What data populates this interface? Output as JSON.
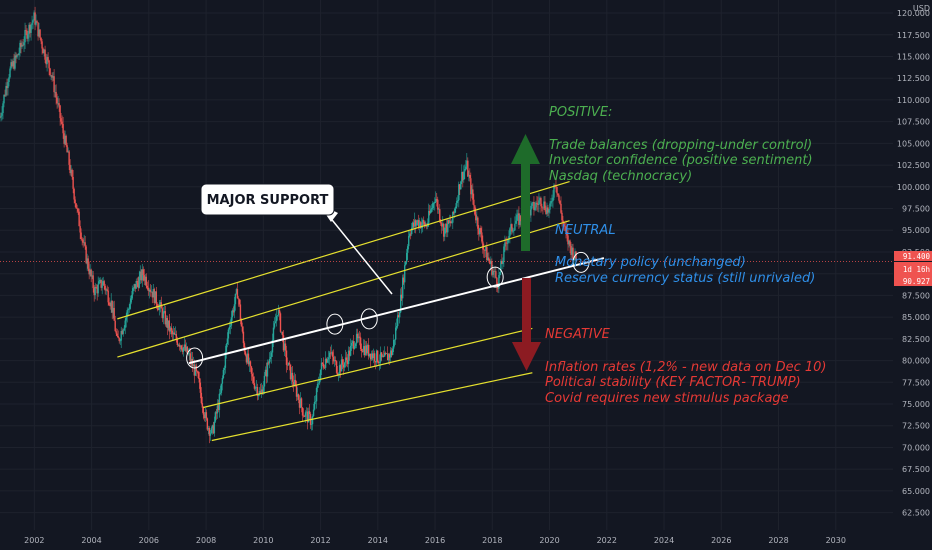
{
  "chart_data": {
    "type": "candlestick",
    "instrument_currency": "USD",
    "x_ticks": [
      "2002",
      "2004",
      "2006",
      "2008",
      "2010",
      "2012",
      "2014",
      "2016",
      "2018",
      "2020",
      "2022",
      "2024",
      "2026",
      "2028",
      "2030"
    ],
    "x_range": [
      2000.8,
      2032.0
    ],
    "y_ticks": [
      "120.000",
      "117.500",
      "115.000",
      "112.500",
      "110.000",
      "107.500",
      "105.000",
      "102.500",
      "100.000",
      "97.500",
      "95.000",
      "92.500",
      "90.000",
      "87.500",
      "85.000",
      "82.500",
      "80.000",
      "77.500",
      "75.000",
      "72.500",
      "70.000",
      "67.500",
      "65.000",
      "62.500"
    ],
    "y_range": [
      60.5,
      121.5
    ],
    "price_series": [
      [
        2000.8,
        108
      ],
      [
        2001.1,
        113
      ],
      [
        2001.4,
        115
      ],
      [
        2001.7,
        117.5
      ],
      [
        2002.0,
        119.5
      ],
      [
        2002.3,
        116
      ],
      [
        2002.6,
        113
      ],
      [
        2002.9,
        108
      ],
      [
        2003.2,
        103
      ],
      [
        2003.5,
        97
      ],
      [
        2003.8,
        92
      ],
      [
        2004.1,
        88
      ],
      [
        2004.4,
        89
      ],
      [
        2004.7,
        86.5
      ],
      [
        2004.9,
        82
      ],
      [
        2005.2,
        85
      ],
      [
        2005.5,
        88.5
      ],
      [
        2005.8,
        90
      ],
      [
        2006.1,
        88
      ],
      [
        2006.4,
        86
      ],
      [
        2006.8,
        83
      ],
      [
        2007.1,
        82
      ],
      [
        2007.4,
        80.5
      ],
      [
        2007.7,
        78
      ],
      [
        2008.0,
        73
      ],
      [
        2008.2,
        71.5
      ],
      [
        2008.5,
        76
      ],
      [
        2008.8,
        84
      ],
      [
        2009.1,
        88
      ],
      [
        2009.3,
        82
      ],
      [
        2009.6,
        78
      ],
      [
        2009.9,
        76
      ],
      [
        2010.2,
        80
      ],
      [
        2010.5,
        86
      ],
      [
        2010.8,
        80
      ],
      [
        2011.1,
        77
      ],
      [
        2011.4,
        74
      ],
      [
        2011.7,
        73
      ],
      [
        2012.0,
        79
      ],
      [
        2012.3,
        81
      ],
      [
        2012.6,
        79
      ],
      [
        2012.9,
        80
      ],
      [
        2013.2,
        82.5
      ],
      [
        2013.5,
        81.5
      ],
      [
        2013.9,
        80.5
      ],
      [
        2014.2,
        80
      ],
      [
        2014.5,
        81
      ],
      [
        2014.8,
        87
      ],
      [
        2015.1,
        95
      ],
      [
        2015.4,
        96
      ],
      [
        2015.7,
        95.5
      ],
      [
        2016.0,
        99
      ],
      [
        2016.3,
        95
      ],
      [
        2016.6,
        96
      ],
      [
        2016.9,
        101
      ],
      [
        2017.1,
        102.5
      ],
      [
        2017.4,
        97
      ],
      [
        2017.7,
        93
      ],
      [
        2018.0,
        90.5
      ],
      [
        2018.2,
        89
      ],
      [
        2018.5,
        94
      ],
      [
        2018.8,
        96
      ],
      [
        2019.1,
        96.5
      ],
      [
        2019.4,
        97.5
      ],
      [
        2019.7,
        98.5
      ],
      [
        2020.0,
        97
      ],
      [
        2020.2,
        101
      ],
      [
        2020.4,
        97
      ],
      [
        2020.6,
        94
      ],
      [
        2020.8,
        92.5
      ],
      [
        2020.95,
        91.4
      ]
    ],
    "price_tags": [
      "91.400",
      "1d 16h",
      "90.927"
    ],
    "trend_lines": [
      {
        "color": "#e5e02e",
        "from": [
          2004.9,
          84.8
        ],
        "to": [
          2020.7,
          100.6
        ]
      },
      {
        "color": "#e5e02e",
        "from": [
          2004.9,
          80.4
        ],
        "to": [
          2020.7,
          96.1
        ]
      },
      {
        "color": "#e5e02e",
        "from": [
          2007.9,
          74.6
        ],
        "to": [
          2019.4,
          83.7
        ]
      },
      {
        "color": "#e5e02e",
        "from": [
          2008.2,
          70.8
        ],
        "to": [
          2019.4,
          78.6
        ]
      },
      {
        "color": "#ffffff",
        "from": [
          2007.4,
          79.7
        ],
        "to": [
          2021.9,
          91.8
        ]
      }
    ],
    "touch_circles": [
      [
        2007.6,
        80.3
      ],
      [
        2012.5,
        84.2
      ],
      [
        2013.7,
        84.8
      ],
      [
        2018.1,
        89.6
      ],
      [
        2021.1,
        91.3
      ]
    ],
    "callout": {
      "text": "MAJOR SUPPORT"
    },
    "positive": {
      "title": "POSITIVE:",
      "color": "#4caf50",
      "items": [
        "Trade balances (dropping-under control)",
        "Investor confidence (positive sentiment)",
        "Nasdaq (technocracy)"
      ]
    },
    "neutral": {
      "title": "NEUTRAL",
      "color": "#2f8fe8",
      "items": [
        "Monetary policy (unchanged)",
        "Reserve currency status (still unrivaled)"
      ]
    },
    "negative": {
      "title": "NEGATIVE",
      "color": "#e53935",
      "items": [
        "Inflation rates (1,2% - new data on Dec 10)",
        "Political stability (KEY FACTOR- TRUMP)",
        "Covid requires new stimulus package"
      ]
    },
    "colors": {
      "up": "#26a69a",
      "down": "#ef5350",
      "grid": "#1e222d",
      "background": "#131722"
    }
  }
}
